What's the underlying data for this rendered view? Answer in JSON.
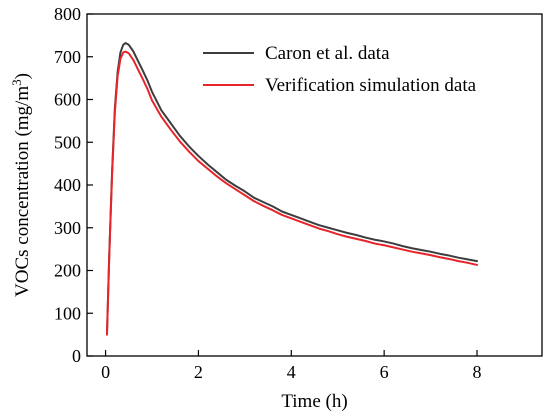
{
  "chart_data": {
    "type": "line",
    "title": "",
    "xlabel": "Time (h)",
    "ylabel": "VOCs concentration (mg/m",
    "ylabel_superscript": "3",
    "ylabel_suffix": ")",
    "xlim": [
      -0.4,
      9.4
    ],
    "ylim": [
      0,
      800
    ],
    "xticks": [
      0,
      2,
      4,
      6,
      8
    ],
    "yticks": [
      0,
      100,
      200,
      300,
      400,
      500,
      600,
      700,
      800
    ],
    "grid": false,
    "legend_position": "top-right",
    "series": [
      {
        "name": "Caron et al. data",
        "color": "#3d3d3d",
        "points": [
          [
            0.03,
            50
          ],
          [
            0.08,
            240
          ],
          [
            0.14,
            430
          ],
          [
            0.2,
            580
          ],
          [
            0.26,
            665
          ],
          [
            0.32,
            710
          ],
          [
            0.38,
            728
          ],
          [
            0.43,
            732
          ],
          [
            0.5,
            728
          ],
          [
            0.6,
            712
          ],
          [
            0.7,
            690
          ],
          [
            0.8,
            668
          ],
          [
            0.9,
            645
          ],
          [
            1.0,
            618
          ],
          [
            1.2,
            575
          ],
          [
            1.4,
            545
          ],
          [
            1.6,
            515
          ],
          [
            1.8,
            490
          ],
          [
            2.0,
            468
          ],
          [
            2.2,
            448
          ],
          [
            2.4,
            430
          ],
          [
            2.6,
            412
          ],
          [
            2.8,
            398
          ],
          [
            3.0,
            385
          ],
          [
            3.2,
            370
          ],
          [
            3.4,
            360
          ],
          [
            3.6,
            350
          ],
          [
            3.8,
            338
          ],
          [
            4.0,
            330
          ],
          [
            4.2,
            322
          ],
          [
            4.4,
            314
          ],
          [
            4.6,
            306
          ],
          [
            4.8,
            300
          ],
          [
            5.0,
            294
          ],
          [
            5.2,
            288
          ],
          [
            5.4,
            283
          ],
          [
            5.6,
            277
          ],
          [
            5.8,
            272
          ],
          [
            6.0,
            268
          ],
          [
            6.2,
            263
          ],
          [
            6.4,
            257
          ],
          [
            6.6,
            252
          ],
          [
            6.8,
            248
          ],
          [
            7.0,
            244
          ],
          [
            7.2,
            239
          ],
          [
            7.4,
            235
          ],
          [
            7.6,
            230
          ],
          [
            7.8,
            226
          ],
          [
            8.0,
            222
          ]
        ]
      },
      {
        "name": "Verification simulation data",
        "color": "#e8242a",
        "points": [
          [
            0.03,
            50
          ],
          [
            0.08,
            235
          ],
          [
            0.14,
            425
          ],
          [
            0.2,
            570
          ],
          [
            0.26,
            655
          ],
          [
            0.32,
            695
          ],
          [
            0.38,
            710
          ],
          [
            0.43,
            712
          ],
          [
            0.5,
            708
          ],
          [
            0.6,
            692
          ],
          [
            0.7,
            670
          ],
          [
            0.8,
            648
          ],
          [
            0.9,
            625
          ],
          [
            1.0,
            598
          ],
          [
            1.2,
            560
          ],
          [
            1.4,
            530
          ],
          [
            1.6,
            502
          ],
          [
            1.8,
            478
          ],
          [
            2.0,
            456
          ],
          [
            2.2,
            438
          ],
          [
            2.4,
            420
          ],
          [
            2.6,
            404
          ],
          [
            2.8,
            390
          ],
          [
            3.0,
            376
          ],
          [
            3.2,
            362
          ],
          [
            3.4,
            351
          ],
          [
            3.6,
            341
          ],
          [
            3.8,
            330
          ],
          [
            4.0,
            322
          ],
          [
            4.2,
            314
          ],
          [
            4.4,
            306
          ],
          [
            4.6,
            298
          ],
          [
            4.8,
            292
          ],
          [
            5.0,
            285
          ],
          [
            5.2,
            279
          ],
          [
            5.4,
            274
          ],
          [
            5.6,
            269
          ],
          [
            5.8,
            263
          ],
          [
            6.0,
            259
          ],
          [
            6.2,
            254
          ],
          [
            6.4,
            249
          ],
          [
            6.6,
            244
          ],
          [
            6.8,
            240
          ],
          [
            7.0,
            236
          ],
          [
            7.2,
            231
          ],
          [
            7.4,
            227
          ],
          [
            7.6,
            222
          ],
          [
            7.8,
            218
          ],
          [
            8.0,
            213
          ]
        ]
      }
    ]
  }
}
